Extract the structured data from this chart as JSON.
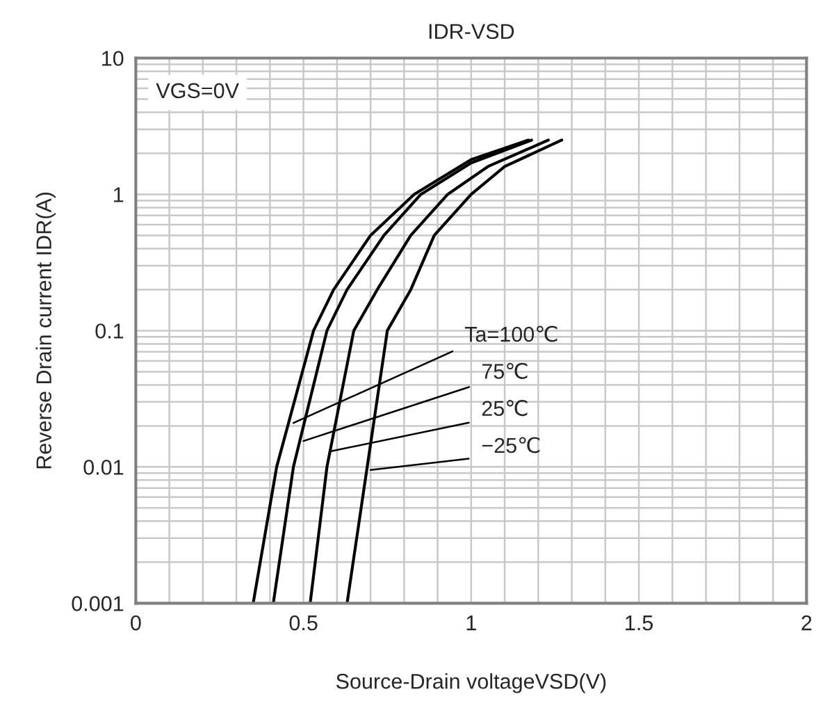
{
  "chart_data": {
    "type": "line",
    "title": "IDR-VSD",
    "xlabel": "Source-Drain voltageVSD(V)",
    "ylabel": "Reverse Drain current IDR(A)",
    "log": "y",
    "grid": true,
    "legend": false,
    "line_style": "solid",
    "marker": "none",
    "xlim": [
      0,
      2
    ],
    "ylim": [
      0.001,
      10
    ],
    "xticks": [
      0,
      {
        "value": 0.1,
        "label": null
      },
      {
        "value": 0.2,
        "label": null
      },
      {
        "value": 0.3,
        "label": null
      },
      {
        "value": 0.4,
        "label": null
      },
      0.5,
      {
        "value": 0.6,
        "label": null
      },
      {
        "value": 0.7,
        "label": null
      },
      {
        "value": 0.8,
        "label": null
      },
      {
        "value": 0.9,
        "label": null
      },
      1,
      {
        "value": 1.1,
        "label": null
      },
      {
        "value": 1.2,
        "label": null
      },
      {
        "value": 1.3,
        "label": null
      },
      {
        "value": 1.4,
        "label": null
      },
      1.5,
      {
        "value": 1.6,
        "label": null
      },
      {
        "value": 1.7,
        "label": null
      },
      {
        "value": 1.8,
        "label": null
      },
      {
        "value": 1.9,
        "label": null
      },
      2
    ],
    "yticks": [
      0.001,
      {
        "value": 0.002,
        "label": null
      },
      {
        "value": 0.003,
        "label": null
      },
      {
        "value": 0.004,
        "label": null
      },
      {
        "value": 0.005,
        "label": null
      },
      {
        "value": 0.006,
        "label": null
      },
      {
        "value": 0.007,
        "label": null
      },
      {
        "value": 0.008,
        "label": null
      },
      {
        "value": 0.009,
        "label": null
      },
      0.01,
      {
        "value": 0.02,
        "label": null
      },
      {
        "value": 0.03,
        "label": null
      },
      {
        "value": 0.04,
        "label": null
      },
      {
        "value": 0.05,
        "label": null
      },
      {
        "value": 0.06,
        "label": null
      },
      {
        "value": 0.07,
        "label": null
      },
      {
        "value": 0.08,
        "label": null
      },
      {
        "value": 0.09,
        "label": null
      },
      0.1,
      {
        "value": 0.2,
        "label": null
      },
      {
        "value": 0.3,
        "label": null
      },
      {
        "value": 0.4,
        "label": null
      },
      {
        "value": 0.5,
        "label": null
      },
      {
        "value": 0.6,
        "label": null
      },
      {
        "value": 0.7,
        "label": null
      },
      {
        "value": 0.8,
        "label": null
      },
      {
        "value": 0.9,
        "label": null
      },
      1,
      {
        "value": 2,
        "label": null
      },
      {
        "value": 3,
        "label": null
      },
      {
        "value": 4,
        "label": null
      },
      {
        "value": 5,
        "label": null
      },
      {
        "value": 6,
        "label": null
      },
      {
        "value": 7,
        "label": null
      },
      {
        "value": 8,
        "label": null
      },
      {
        "value": 9,
        "label": null
      },
      10
    ],
    "series": [
      {
        "color": "#000000",
        "x": [
          0.35,
          0.42,
          0.53,
          0.59,
          0.7,
          0.83,
          1.0,
          1.17
        ],
        "values": [
          0.001,
          0.01,
          0.1,
          0.2,
          0.5,
          1,
          1.8,
          2.5
        ]
      },
      {
        "color": "#000000",
        "x": [
          0.41,
          0.47,
          0.57,
          0.63,
          0.74,
          0.85,
          1.0,
          1.18
        ],
        "values": [
          0.001,
          0.01,
          0.1,
          0.2,
          0.5,
          1,
          1.7,
          2.5
        ]
      },
      {
        "color": "#000000",
        "x": [
          0.52,
          0.57,
          0.65,
          0.72,
          0.82,
          0.93,
          1.05,
          1.23
        ],
        "values": [
          0.001,
          0.01,
          0.1,
          0.2,
          0.5,
          1,
          1.6,
          2.5
        ]
      },
      {
        "color": "#000000",
        "x": [
          0.63,
          0.69,
          0.75,
          0.82,
          0.89,
          1.0,
          1.1,
          1.27
        ],
        "values": [
          0.001,
          0.01,
          0.1,
          0.2,
          0.5,
          1,
          1.6,
          2.5
        ]
      }
    ],
    "annotations": [
      "VGS=0V",
      {
        "text": "Ta=100℃",
        "x": 0.47,
        "y": 0.021
      },
      {
        "text": "75℃",
        "x": 0.5,
        "y": 0.0155
      },
      {
        "text": "25℃",
        "x": 0.58,
        "y": 0.013
      },
      {
        "text": "−25℃",
        "x": 0.7,
        "y": 0.0095
      }
    ]
  }
}
